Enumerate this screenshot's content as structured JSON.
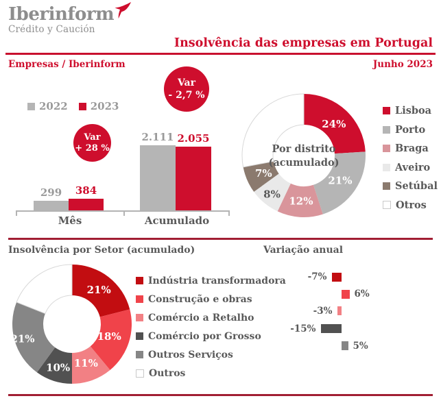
{
  "logo": {
    "name": "Iberinform",
    "subtitle": "Crédito y Caución"
  },
  "header": {
    "title": "Insolvência das empresas em Portugal",
    "section_left": "Empresas / Iberinform",
    "section_right": "Junho 2023"
  },
  "colors": {
    "brand_red": "#ce0e2d",
    "header_rule_red": "#c8102e",
    "divider_red": "#a11e33",
    "logo_gray": "#8d8d8d",
    "text_dark": "#595959",
    "text_gray": "#9a9a9a",
    "axis_gray": "#b3b3b3"
  },
  "chart_data": [
    {
      "id": "insolvencies_bar",
      "type": "bar",
      "categories": [
        "Mês",
        "Acumulado"
      ],
      "series": [
        {
          "name": "2022",
          "color": "#b5b5b5",
          "values": [
            299,
            2111
          ],
          "value_labels": [
            "299",
            "2.111"
          ]
        },
        {
          "name": "2023",
          "color": "#ce0e2d",
          "values": [
            384,
            2055
          ],
          "value_labels": [
            "384",
            "2.055"
          ]
        }
      ],
      "annotations": [
        {
          "title": "Var",
          "value": "+ 28 %",
          "applies_to": "Mês"
        },
        {
          "title": "Var",
          "value": "- 2,7 %",
          "applies_to": "Acumulado"
        }
      ]
    },
    {
      "id": "district_donut",
      "type": "pie",
      "center_label": [
        "Por distrito",
        "(acumulado)"
      ],
      "slices": [
        {
          "label": "Lisboa",
          "value": 24,
          "display": "24%",
          "color": "#ce0e2d",
          "text_color": "#ffffff"
        },
        {
          "label": "Porto",
          "value": 21,
          "display": "21%",
          "color": "#b5b5b5",
          "text_color": "#ffffff"
        },
        {
          "label": "Braga",
          "value": 12,
          "display": "12%",
          "color": "#d9959b",
          "text_color": "#ffffff"
        },
        {
          "label": "Aveiro",
          "value": 8,
          "display": "8%",
          "color": "#e9e9e9",
          "text_color": "#595959"
        },
        {
          "label": "Setúbal",
          "value": 7,
          "display": "7%",
          "color": "#8b7a6e",
          "text_color": "#ffffff"
        },
        {
          "label": "Otros",
          "value": 28,
          "display": "",
          "color": "#ffffff",
          "text_color": ""
        }
      ]
    },
    {
      "id": "sector_donut",
      "type": "pie",
      "title": "Insolvência por Setor (acumulado)",
      "slices": [
        {
          "label": "Indústria transformadora",
          "value": 21,
          "display": "21%",
          "color": "#c20d11",
          "text_color": "#ffffff"
        },
        {
          "label": "Construção e obras",
          "value": 18,
          "display": "18%",
          "color": "#f0434a",
          "text_color": "#ffffff"
        },
        {
          "label": "Comércio a Retalho",
          "value": 11,
          "display": "11%",
          "color": "#f28084",
          "text_color": "#ffffff"
        },
        {
          "label": "Comércio por Grosso",
          "value": 10,
          "display": "10%",
          "color": "#515151",
          "text_color": "#ffffff"
        },
        {
          "label": "Outros Serviços",
          "value": 21,
          "display": "21%",
          "color": "#868686",
          "text_color": "#ffffff"
        },
        {
          "label": "Outros",
          "value": 19,
          "display": "",
          "color": "#ffffff",
          "text_color": ""
        }
      ]
    },
    {
      "id": "annual_variation",
      "type": "bar",
      "orientation": "horizontal",
      "title": "Variação anual",
      "categories": [
        "Indústria transformadora",
        "Construção e obras",
        "Comércio a Retalho",
        "Comércio por Grosso",
        "Outros Serviços"
      ],
      "values": [
        -7,
        6,
        -3,
        -15,
        5
      ],
      "labels": [
        "-7%",
        "6%",
        "-3%",
        "-15%",
        "5%"
      ],
      "colors": [
        "#c20d11",
        "#f0434a",
        "#f28084",
        "#515151",
        "#868686"
      ]
    }
  ]
}
